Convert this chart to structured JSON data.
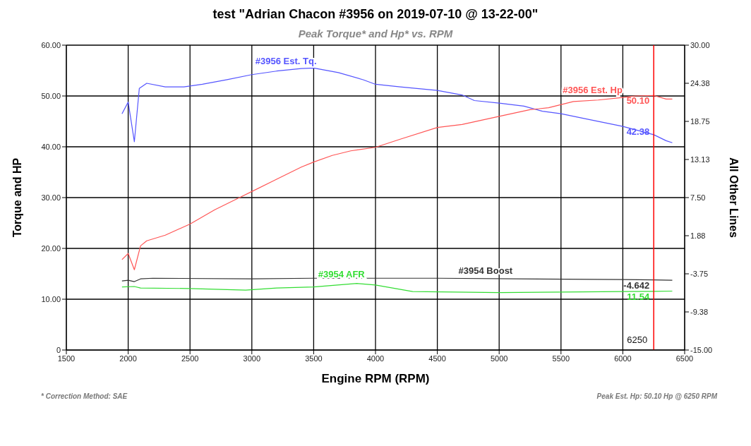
{
  "chart_data": {
    "type": "line",
    "title": "test \"Adrian Chacon #3956 on 2019-07-10 @ 13-22-00\"",
    "subtitle": "Peak Torque* and Hp* vs. RPM",
    "xlabel": "Engine RPM (RPM)",
    "ylabel": "Torque and HP",
    "y2label": "All Other Lines",
    "xlim": [
      1500,
      6500
    ],
    "xticks": [
      1500,
      2000,
      2500,
      3000,
      3500,
      4000,
      4500,
      5000,
      5500,
      6000,
      6500
    ],
    "ylim": [
      0,
      60
    ],
    "yticks": [
      0,
      {
        "value": 10,
        "label": "10.00"
      },
      {
        "value": 20,
        "label": "20.00"
      },
      {
        "value": 30,
        "label": "30.00"
      },
      {
        "value": 40,
        "label": "40.00"
      },
      {
        "value": 50,
        "label": "50.00"
      },
      {
        "value": 60,
        "label": "60.00"
      }
    ],
    "y2lim": [
      -15,
      30
    ],
    "y2ticks": [
      {
        "value": -15,
        "label": "-15.00"
      },
      {
        "value": -9.375,
        "label": "-9.38"
      },
      {
        "value": -3.75,
        "label": "-3.75"
      },
      {
        "value": 1.875,
        "label": "1.88"
      },
      {
        "value": 7.5,
        "label": "7.50"
      },
      {
        "value": 13.125,
        "label": "13.13"
      },
      {
        "value": 18.75,
        "label": "18.75"
      },
      {
        "value": 24.375,
        "label": "24.38"
      },
      {
        "value": 30,
        "label": "30.00"
      }
    ],
    "grid": true,
    "marker": "none",
    "line_style": "solid",
    "series": [
      {
        "name": "#3956 Est. Tq.",
        "color": "#5555ff",
        "x": [
          1950,
          2000,
          2050,
          2090,
          2150,
          2300,
          2450,
          2600,
          2800,
          3000,
          3200,
          3400,
          3500,
          3700,
          3900,
          4000,
          4200,
          4500,
          4700,
          4800,
          5000,
          5200,
          5350,
          5500,
          5700,
          6000,
          6250,
          6350,
          6400
        ],
        "values": [
          46.5,
          48.8,
          41,
          51.5,
          52.5,
          51.8,
          51.8,
          52.3,
          53.2,
          54.2,
          54.9,
          55.4,
          55.5,
          54.6,
          53.2,
          52.3,
          51.8,
          51.1,
          50.2,
          49.1,
          48.6,
          48.0,
          47.0,
          46.5,
          45.5,
          44.0,
          42.38,
          41.2,
          40.8
        ],
        "value_labels": [
          null,
          null,
          null,
          null,
          null,
          null,
          null,
          null,
          null,
          null,
          null,
          null,
          null,
          null,
          null,
          null,
          null,
          null,
          null,
          null,
          null,
          null,
          null,
          null,
          null,
          null,
          "42.38",
          null,
          null
        ]
      },
      {
        "name": "#3956 Est. Hp",
        "color": "#ff5555",
        "x": [
          1950,
          2000,
          2050,
          2100,
          2150,
          2300,
          2500,
          2700,
          2900,
          3000,
          3200,
          3400,
          3500,
          3650,
          3800,
          4000,
          4200,
          4500,
          4700,
          5000,
          5250,
          5400,
          5600,
          5800,
          6000,
          6100,
          6250,
          6350,
          6400
        ],
        "values": [
          17.8,
          19,
          15.8,
          20.5,
          21.5,
          22.6,
          24.8,
          27.6,
          30.0,
          31.2,
          33.6,
          36.0,
          37.0,
          38.3,
          39.2,
          39.9,
          41.5,
          43.8,
          44.4,
          46.0,
          47.3,
          47.7,
          48.9,
          49.2,
          49.7,
          50.0,
          50.1,
          49.4,
          49.4
        ],
        "value_labels": [
          null,
          null,
          null,
          null,
          null,
          null,
          null,
          null,
          null,
          null,
          null,
          null,
          null,
          null,
          null,
          null,
          null,
          null,
          null,
          null,
          null,
          null,
          null,
          null,
          null,
          null,
          "50.10",
          null,
          null
        ]
      },
      {
        "name": "#3954 Boost",
        "color": "#333333",
        "axis": "y2",
        "x": [
          1950,
          2000,
          2050,
          2100,
          2200,
          3000,
          3500,
          4500,
          6000,
          6250,
          6400
        ],
        "values": [
          -4.8,
          -4.7,
          -4.9,
          -4.5,
          -4.4,
          -4.5,
          -4.4,
          -4.4,
          -4.6,
          -4.642,
          -4.7
        ],
        "value_labels": [
          null,
          null,
          null,
          null,
          null,
          null,
          null,
          null,
          null,
          "-4.642",
          null
        ]
      },
      {
        "name": "#3954 AFR",
        "color": "#33dd33",
        "x": [
          1950,
          2050,
          2100,
          2500,
          2950,
          3200,
          3500,
          3850,
          4000,
          4300,
          5000,
          5500,
          6000,
          6250,
          6400
        ],
        "values": [
          12.4,
          12.5,
          12.2,
          12.1,
          11.8,
          12.2,
          12.4,
          13.1,
          12.8,
          11.5,
          11.3,
          11.4,
          11.5,
          11.54,
          11.6
        ],
        "value_labels": [
          null,
          null,
          null,
          null,
          null,
          null,
          null,
          null,
          null,
          null,
          null,
          null,
          null,
          "11.54",
          null
        ]
      }
    ],
    "ref_lines": [
      {
        "axis": "x",
        "value": 6250,
        "label": "6250",
        "color": "#ff0000"
      }
    ],
    "annotations": [
      "* Correction Method: SAE",
      "Peak Est. Hp: 50.10 Hp @ 6250 RPM"
    ]
  }
}
